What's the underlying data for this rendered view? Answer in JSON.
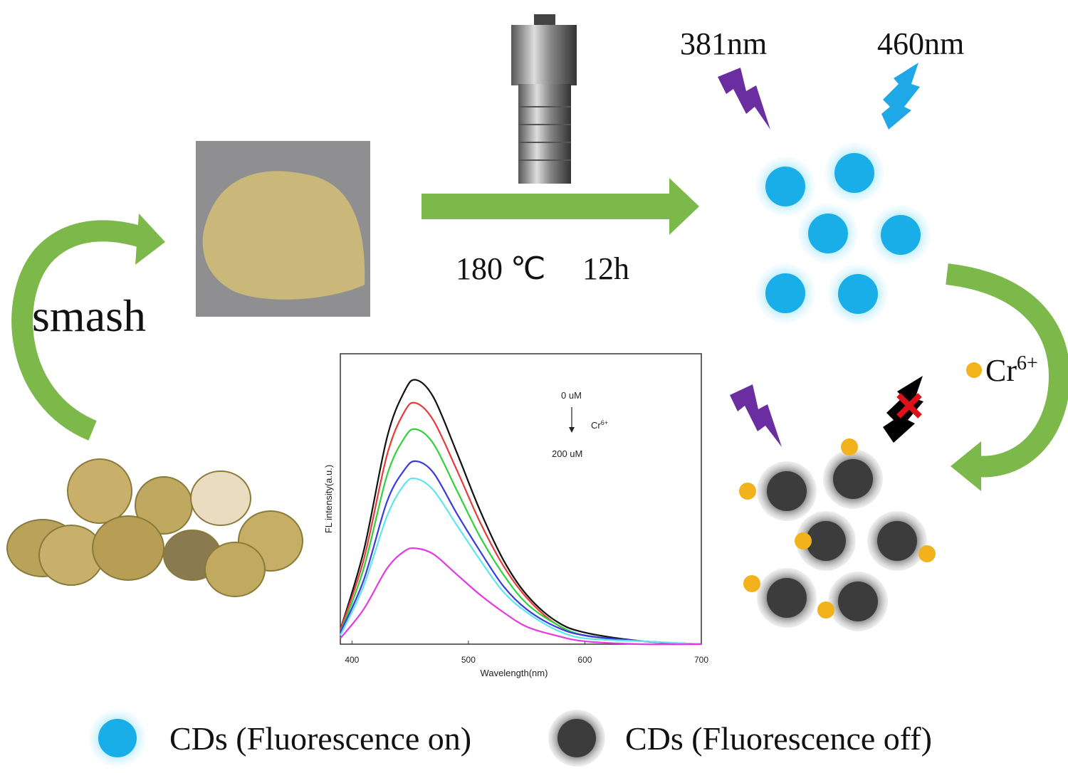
{
  "labels": {
    "smash": "smash",
    "temperature": "180 ℃",
    "time": "12h",
    "excitation_1": "381nm",
    "excitation_2": "460nm",
    "ion": "Cr",
    "ion_charge": "6+"
  },
  "legend": [
    {
      "label": "CDs (Fluorescence on)"
    },
    {
      "label": "CDs (Fluorescence off)"
    }
  ],
  "chart_data": {
    "type": "line",
    "x_label": "Wavelength(nm)",
    "y_label": "FL intensity(a.u.)",
    "annotation": {
      "start": "0 uM",
      "ion": "Cr",
      "ion_charge": "6+",
      "end": "200 uM"
    },
    "x": [
      390,
      410,
      430,
      445,
      455,
      470,
      490,
      510,
      530,
      550,
      575,
      600,
      650,
      700
    ],
    "series": [
      {
        "color": "#111111",
        "values": [
          0.05,
          0.32,
          0.71,
          0.87,
          0.91,
          0.85,
          0.66,
          0.46,
          0.29,
          0.17,
          0.08,
          0.04,
          0.01,
          0
        ]
      },
      {
        "color": "#e83a3a",
        "values": [
          0.05,
          0.29,
          0.65,
          0.8,
          0.83,
          0.77,
          0.6,
          0.42,
          0.27,
          0.16,
          0.07,
          0.03,
          0.01,
          0
        ]
      },
      {
        "color": "#2fd23a",
        "values": [
          0.04,
          0.26,
          0.58,
          0.71,
          0.74,
          0.69,
          0.53,
          0.37,
          0.24,
          0.14,
          0.07,
          0.03,
          0.01,
          0
        ]
      },
      {
        "color": "#3a3ae0",
        "values": [
          0.04,
          0.22,
          0.49,
          0.6,
          0.63,
          0.59,
          0.45,
          0.32,
          0.2,
          0.12,
          0.06,
          0.03,
          0.01,
          0
        ]
      },
      {
        "color": "#5ee6f0",
        "values": [
          0.03,
          0.2,
          0.44,
          0.55,
          0.57,
          0.53,
          0.41,
          0.29,
          0.18,
          0.11,
          0.05,
          0.02,
          0.01,
          0
        ]
      },
      {
        "color": "#e43ae0",
        "values": [
          0.02,
          0.12,
          0.26,
          0.32,
          0.33,
          0.31,
          0.24,
          0.17,
          0.11,
          0.06,
          0.03,
          0.01,
          0,
          0
        ]
      }
    ],
    "xlim": [
      390,
      700
    ],
    "xticks": [
      400,
      500,
      600,
      700
    ],
    "ylim": [
      0,
      1
    ]
  }
}
